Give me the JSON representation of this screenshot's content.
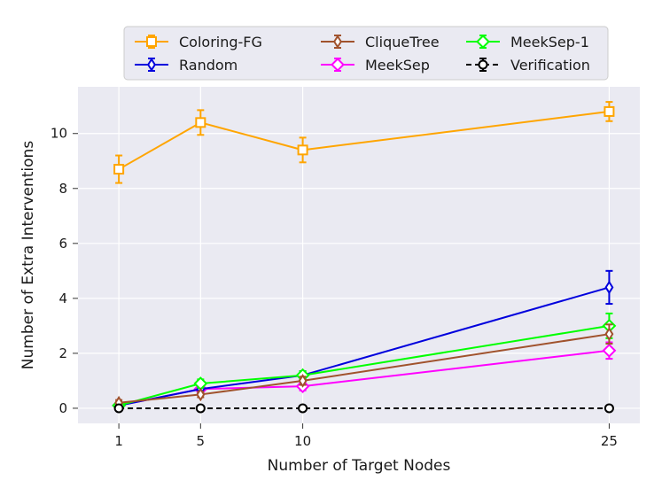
{
  "chart_data": {
    "type": "line",
    "xlabel": "Number of Target Nodes",
    "ylabel": "Number of Extra Interventions",
    "x": [
      1,
      5,
      10,
      25
    ],
    "xticks": [
      "1",
      "5",
      "10",
      "25"
    ],
    "xlim": [
      -1,
      26.5
    ],
    "ylim": [
      -0.55,
      11.7
    ],
    "yticks": [
      0,
      2,
      4,
      6,
      8,
      10
    ],
    "ytick_labels": [
      "0",
      "2",
      "4",
      "6",
      "8",
      "10"
    ],
    "grid": true,
    "legend_position": "top-center",
    "series": [
      {
        "name": "Coloring-FG",
        "color": "#ffa500",
        "marker": "square",
        "dash": false,
        "values": [
          8.7,
          10.4,
          9.4,
          10.8
        ],
        "err": [
          0.5,
          0.45,
          0.45,
          0.35
        ]
      },
      {
        "name": "MeekSep",
        "color": "#ff00ff",
        "marker": "diamond",
        "dash": false,
        "values": [
          0.1,
          0.7,
          0.8,
          2.1
        ],
        "err": [
          0.1,
          0.15,
          0.15,
          0.3
        ]
      },
      {
        "name": "Random",
        "color": "#0000dd",
        "marker": "thin_diamond",
        "dash": false,
        "values": [
          0.1,
          0.7,
          1.2,
          4.4
        ],
        "err": [
          0.1,
          0.15,
          0.15,
          0.6
        ]
      },
      {
        "name": "MeekSep-1",
        "color": "#00ff00",
        "marker": "diamond",
        "dash": false,
        "values": [
          0.1,
          0.9,
          1.2,
          3.0
        ],
        "err": [
          0.1,
          0.15,
          0.15,
          0.45
        ]
      },
      {
        "name": "CliqueTree",
        "color": "#a0522d",
        "marker": "thin_diamond",
        "dash": false,
        "values": [
          0.2,
          0.5,
          1.0,
          2.7
        ],
        "err": [
          0.1,
          0.1,
          0.15,
          0.35
        ]
      },
      {
        "name": "Verification",
        "color": "#000000",
        "marker": "circle",
        "dash": true,
        "values": [
          0,
          0,
          0,
          0
        ],
        "err": [
          0,
          0,
          0,
          0
        ]
      }
    ],
    "legend_order": [
      0,
      2,
      4,
      1,
      3,
      5
    ]
  }
}
